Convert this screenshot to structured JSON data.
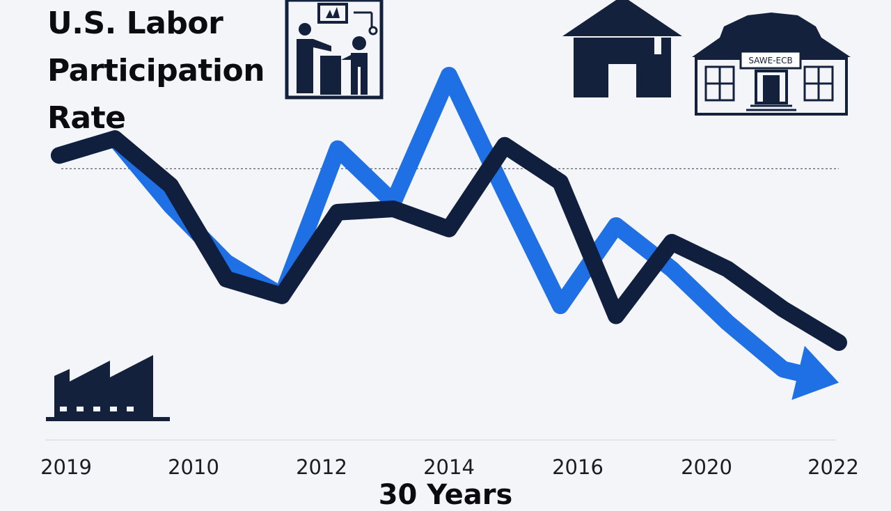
{
  "chart_data": {
    "type": "line",
    "title_lines": [
      "U.S. Labor",
      "Participation",
      "Rate"
    ],
    "xlabel": "30 Years",
    "ylabel": "",
    "x_ticks": [
      "2019",
      "2010",
      "2012",
      "2014",
      "2016",
      "2020",
      "2022"
    ],
    "ylim": [
      0,
      100
    ],
    "grid": false,
    "reference_line": 62,
    "series": [
      {
        "color": "#1f6fe5",
        "values": [
          66,
          71,
          51,
          34,
          24,
          68,
          52,
          90,
          55,
          21,
          45,
          32,
          16,
          2,
          -2
        ],
        "arrow": true
      },
      {
        "color": "#0f1f3d",
        "values": [
          66,
          71,
          57,
          29,
          24,
          49,
          50,
          44,
          69,
          58,
          18,
          40,
          32,
          20,
          10
        ]
      }
    ],
    "icons": [
      "office-meeting-icon",
      "house-icon",
      "school-building-icon",
      "factory-icon"
    ],
    "building_sign": "SAWE-ECB"
  }
}
